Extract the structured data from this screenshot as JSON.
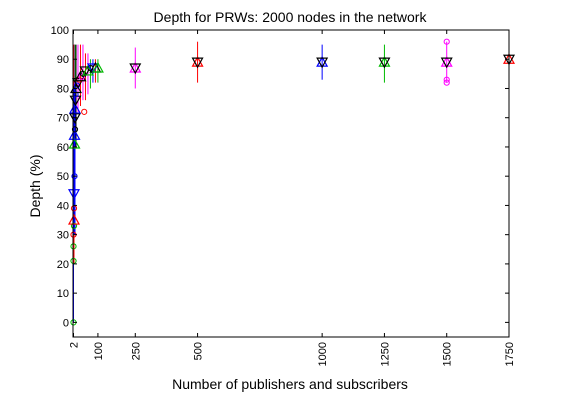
{
  "chart_data": {
    "type": "scatter",
    "title": "Depth for PRWs: 2000 nodes in the network",
    "xlabel": "Number of publishers and subscribers",
    "ylabel": "Depth (%)",
    "xlim": [
      0,
      1750
    ],
    "ylim": [
      -5,
      100
    ],
    "xticks": [
      2,
      100,
      250,
      500,
      1000,
      1250,
      1500,
      1750
    ],
    "yticks": [
      0,
      10,
      20,
      30,
      40,
      50,
      60,
      70,
      80,
      90,
      100
    ],
    "grid": false,
    "legend": "none",
    "colors": {
      "blue": "#0000ff",
      "red": "#ff0000",
      "green": "#00bb00",
      "magenta": "#ff00ff",
      "black": "#000000"
    },
    "markers": [
      {
        "x": 2,
        "y": 0,
        "color": "green",
        "shape": "circle"
      },
      {
        "x": 2,
        "y": 21,
        "color": "green",
        "shape": "circle"
      },
      {
        "x": 2,
        "y": 26,
        "color": "green",
        "shape": "circle"
      },
      {
        "x": 2,
        "y": 30,
        "color": "red",
        "shape": "circle"
      },
      {
        "x": 4,
        "y": 33,
        "color": "green",
        "shape": "circle"
      },
      {
        "x": 4,
        "y": 35,
        "color": "red",
        "shape": "tri-up"
      },
      {
        "x": 4,
        "y": 39,
        "color": "red",
        "shape": "circle"
      },
      {
        "x": 4,
        "y": 44,
        "color": "blue",
        "shape": "tri-down"
      },
      {
        "x": 6,
        "y": 50,
        "color": "blue",
        "shape": "circle"
      },
      {
        "x": 6,
        "y": 61,
        "color": "green",
        "shape": "tri-up"
      },
      {
        "x": 6,
        "y": 64,
        "color": "blue",
        "shape": "tri-up"
      },
      {
        "x": 8,
        "y": 66,
        "color": "black",
        "shape": "circle"
      },
      {
        "x": 8,
        "y": 70,
        "color": "black",
        "shape": "tri-down"
      },
      {
        "x": 8,
        "y": 73,
        "color": "blue",
        "shape": "tri-up"
      },
      {
        "x": 10,
        "y": 76,
        "color": "black",
        "shape": "tri-down"
      },
      {
        "x": 10,
        "y": 78,
        "color": "blue",
        "shape": "circle"
      },
      {
        "x": 12,
        "y": 80,
        "color": "black",
        "shape": "tri-up"
      },
      {
        "x": 16,
        "y": 81,
        "color": "blue",
        "shape": "circle"
      },
      {
        "x": 20,
        "y": 82,
        "color": "black",
        "shape": "tri-down"
      },
      {
        "x": 25,
        "y": 83,
        "color": "red",
        "shape": "circle"
      },
      {
        "x": 30,
        "y": 84,
        "color": "black",
        "shape": "tri-up"
      },
      {
        "x": 35,
        "y": 84,
        "color": "magenta",
        "shape": "circle"
      },
      {
        "x": 40,
        "y": 85,
        "color": "black",
        "shape": "circle"
      },
      {
        "x": 45,
        "y": 72,
        "color": "red",
        "shape": "circle"
      },
      {
        "x": 50,
        "y": 86,
        "color": "black",
        "shape": "tri-down"
      },
      {
        "x": 60,
        "y": 86,
        "color": "green",
        "shape": "tri-up"
      },
      {
        "x": 70,
        "y": 87,
        "color": "black",
        "shape": "circle"
      },
      {
        "x": 80,
        "y": 87,
        "color": "blue",
        "shape": "tri-down"
      },
      {
        "x": 90,
        "y": 87,
        "color": "black",
        "shape": "tri-up"
      },
      {
        "x": 100,
        "y": 87,
        "color": "green",
        "shape": "tri-up"
      },
      {
        "x": 250,
        "y": 87,
        "color": "magenta",
        "shape": "tri-up"
      },
      {
        "x": 250,
        "y": 87,
        "color": "black",
        "shape": "tri-down"
      },
      {
        "x": 500,
        "y": 89,
        "color": "red",
        "shape": "tri-up"
      },
      {
        "x": 500,
        "y": 89,
        "color": "black",
        "shape": "tri-down"
      },
      {
        "x": 1000,
        "y": 89,
        "color": "blue",
        "shape": "tri-up"
      },
      {
        "x": 1000,
        "y": 89,
        "color": "black",
        "shape": "tri-down"
      },
      {
        "x": 1250,
        "y": 89,
        "color": "green",
        "shape": "tri-up"
      },
      {
        "x": 1250,
        "y": 89,
        "color": "black",
        "shape": "tri-down"
      },
      {
        "x": 1500,
        "y": 89,
        "color": "magenta",
        "shape": "tri-up"
      },
      {
        "x": 1500,
        "y": 89,
        "color": "black",
        "shape": "tri-down"
      },
      {
        "x": 1500,
        "y": 96,
        "color": "magenta",
        "shape": "circle"
      },
      {
        "x": 1500,
        "y": 83,
        "color": "magenta",
        "shape": "circle"
      },
      {
        "x": 1500,
        "y": 82,
        "color": "magenta",
        "shape": "circle"
      },
      {
        "x": 1750,
        "y": 90,
        "color": "red",
        "shape": "tri-up"
      },
      {
        "x": 1750,
        "y": 90,
        "color": "black",
        "shape": "tri-down"
      }
    ],
    "error_bars": [
      {
        "x": 2,
        "low": 0,
        "high": 92,
        "color": "blue"
      },
      {
        "x": 4,
        "low": 20,
        "high": 95,
        "color": "red"
      },
      {
        "x": 6,
        "low": 30,
        "high": 95,
        "color": "magenta"
      },
      {
        "x": 8,
        "low": 40,
        "high": 95,
        "color": "green"
      },
      {
        "x": 12,
        "low": 60,
        "high": 95,
        "color": "black"
      },
      {
        "x": 20,
        "low": 72,
        "high": 95,
        "color": "magenta"
      },
      {
        "x": 30,
        "low": 74,
        "high": 95,
        "color": "red"
      },
      {
        "x": 40,
        "low": 76,
        "high": 95,
        "color": "magenta"
      },
      {
        "x": 50,
        "low": 76,
        "high": 92,
        "color": "red"
      },
      {
        "x": 60,
        "low": 78,
        "high": 92,
        "color": "magenta"
      },
      {
        "x": 70,
        "low": 80,
        "high": 90,
        "color": "green"
      },
      {
        "x": 80,
        "low": 82,
        "high": 90,
        "color": "blue"
      },
      {
        "x": 90,
        "low": 82,
        "high": 90,
        "color": "red"
      },
      {
        "x": 100,
        "low": 82,
        "high": 90,
        "color": "green"
      },
      {
        "x": 250,
        "low": 80,
        "high": 94,
        "color": "magenta"
      },
      {
        "x": 500,
        "low": 82,
        "high": 96,
        "color": "red"
      },
      {
        "x": 1000,
        "low": 83,
        "high": 95,
        "color": "blue"
      },
      {
        "x": 1250,
        "low": 82,
        "high": 95,
        "color": "green"
      },
      {
        "x": 1500,
        "low": 82,
        "high": 96,
        "color": "magenta"
      },
      {
        "x": 1750,
        "low": 83,
        "high": 97,
        "color": "red"
      }
    ],
    "thick_segments": [
      {
        "x": 4,
        "low": 30,
        "high": 80,
        "color": "blue"
      }
    ]
  }
}
